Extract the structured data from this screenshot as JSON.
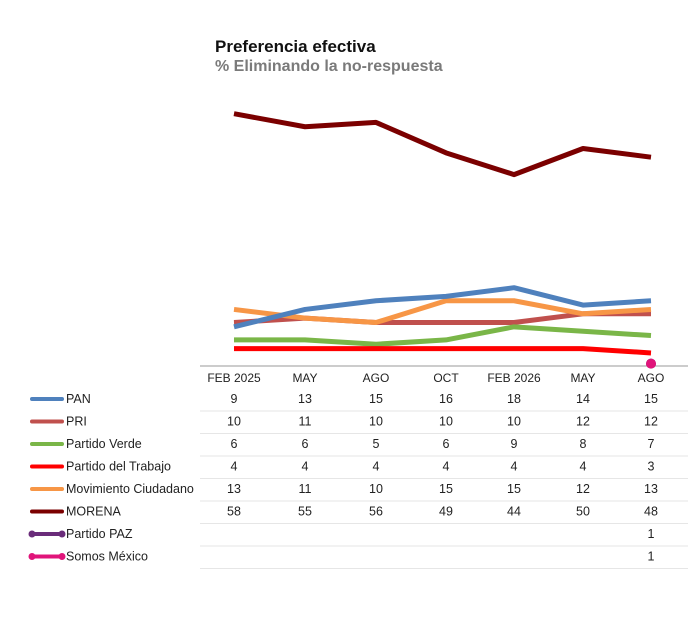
{
  "header": {
    "title": "Preferencia efectiva",
    "subtitle": "% Eliminando la no-respuesta"
  },
  "chart_data": {
    "type": "line",
    "title": "Preferencia efectiva",
    "subtitle": "% Eliminando la no-respuesta",
    "categories": [
      "FEB 2025",
      "MAY",
      "AGO",
      "OCT",
      "FEB 2026",
      "MAY",
      "AGO"
    ],
    "grid": false,
    "legend": "table-below",
    "series": [
      {
        "name": "PAN",
        "color": "#4f81bd",
        "values": [
          9,
          13,
          15,
          16,
          18,
          14,
          15
        ]
      },
      {
        "name": "PRI",
        "color": "#c0504d",
        "values": [
          10,
          11,
          10,
          10,
          10,
          12,
          12
        ]
      },
      {
        "name": "Partido Verde",
        "color": "#7ab648",
        "values": [
          6,
          6,
          5,
          6,
          9,
          8,
          7
        ]
      },
      {
        "name": "Partido del Trabajo",
        "color": "#ff0000",
        "values": [
          4,
          4,
          4,
          4,
          4,
          4,
          3
        ]
      },
      {
        "name": "Movimiento Ciudadano",
        "color": "#f79646",
        "values": [
          13,
          11,
          10,
          15,
          15,
          12,
          13
        ]
      },
      {
        "name": "MORENA",
        "color": "#7b0000",
        "values": [
          58,
          55,
          56,
          49,
          44,
          50,
          48
        ]
      },
      {
        "name": "Partido PAZ",
        "color": "#6a2c7a",
        "marker": true,
        "values": [
          null,
          null,
          null,
          null,
          null,
          null,
          1
        ]
      },
      {
        "name": "Somos México",
        "color": "#e0147a",
        "marker": true,
        "values": [
          null,
          null,
          null,
          null,
          null,
          null,
          1
        ]
      }
    ]
  }
}
